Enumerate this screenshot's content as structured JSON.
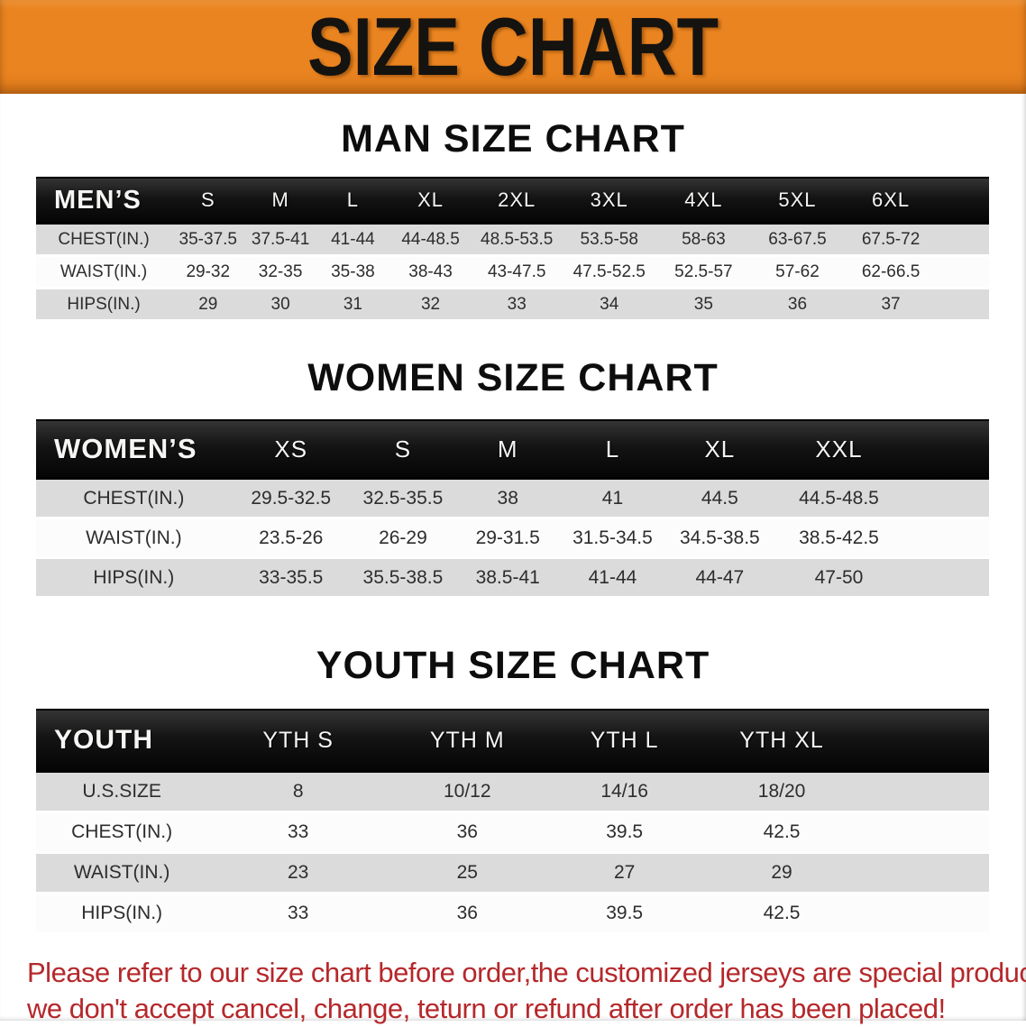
{
  "banner": {
    "title": "SIZE CHART",
    "bg_color": "#EA8420",
    "text_color": "#151310"
  },
  "sections": [
    {
      "heading": "MAN SIZE CHART",
      "table": {
        "label": "MEN’S",
        "columns": [
          "S",
          "M",
          "L",
          "XL",
          "2XL",
          "3XL",
          "4XL",
          "5XL",
          "6XL"
        ],
        "rows": [
          {
            "label": "CHEST(IN.)",
            "values": [
              "35-37.5",
              "37.5-41",
              "41-44",
              "44-48.5",
              "48.5-53.5",
              "53.5-58",
              "58-63",
              "63-67.5",
              "67.5-72"
            ]
          },
          {
            "label": "WAIST(IN.)",
            "values": [
              "29-32",
              "32-35",
              "35-38",
              "38-43",
              "43-47.5",
              "47.5-52.5",
              "52.5-57",
              "57-62",
              "62-66.5"
            ]
          },
          {
            "label": "HIPS(IN.)",
            "values": [
              "29",
              "30",
              "31",
              "32",
              "33",
              "34",
              "35",
              "36",
              "37"
            ]
          }
        ]
      }
    },
    {
      "heading": "WOMEN SIZE CHART",
      "table": {
        "label": "WOMEN’S",
        "columns": [
          "XS",
          "S",
          "M",
          "L",
          "XL",
          "XXL"
        ],
        "rows": [
          {
            "label": "CHEST(IN.)",
            "values": [
              "29.5-32.5",
              "32.5-35.5",
              "38",
              "41",
              "44.5",
              "44.5-48.5"
            ]
          },
          {
            "label": "WAIST(IN.)",
            "values": [
              "23.5-26",
              "26-29",
              "29-31.5",
              "31.5-34.5",
              "34.5-38.5",
              "38.5-42.5"
            ]
          },
          {
            "label": "HIPS(IN.)",
            "values": [
              "33-35.5",
              "35.5-38.5",
              "38.5-41",
              "41-44",
              "44-47",
              "47-50"
            ]
          }
        ]
      }
    },
    {
      "heading": "YOUTH SIZE CHART",
      "table": {
        "label": "YOUTH",
        "columns": [
          "YTH S",
          "YTH M",
          "YTH L",
          "YTH XL"
        ],
        "rows": [
          {
            "label": "U.S.SIZE",
            "values": [
              "8",
              "10/12",
              "14/16",
              "18/20"
            ]
          },
          {
            "label": "CHEST(IN.)",
            "values": [
              "33",
              "36",
              "39.5",
              "42.5"
            ]
          },
          {
            "label": "WAIST(IN.)",
            "values": [
              "23",
              "25",
              "27",
              "29"
            ]
          },
          {
            "label": "HIPS(IN.)",
            "values": [
              "33",
              "36",
              "39.5",
              "42.5"
            ]
          }
        ]
      }
    }
  ],
  "disclaimer": {
    "line1": "Please refer to our size chart before order,the customized jerseys are special products,",
    "line2": "we don't accept cancel, change, teturn or refund after order has been placed!",
    "color": "#B5282B"
  }
}
